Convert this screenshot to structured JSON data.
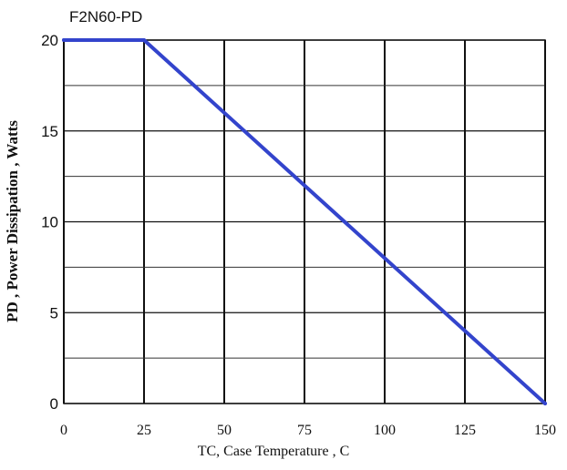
{
  "chart_data": {
    "type": "line",
    "title": "F2N60-PD",
    "xlabel": "TC, Case Temperature , C",
    "ylabel": "PD , Power Dissipation ,  Watts",
    "xlim": [
      0,
      150
    ],
    "ylim": [
      0,
      20
    ],
    "x_ticks": [
      "0",
      "25",
      "50",
      "75",
      "100",
      "125",
      "150"
    ],
    "y_ticks": [
      "0",
      "5",
      "10",
      "15",
      "20"
    ],
    "grid": true,
    "legend": "none",
    "series": [
      {
        "color": "#3344cc",
        "x": [
          0,
          25,
          150
        ],
        "y": [
          20,
          20,
          0
        ]
      }
    ]
  }
}
